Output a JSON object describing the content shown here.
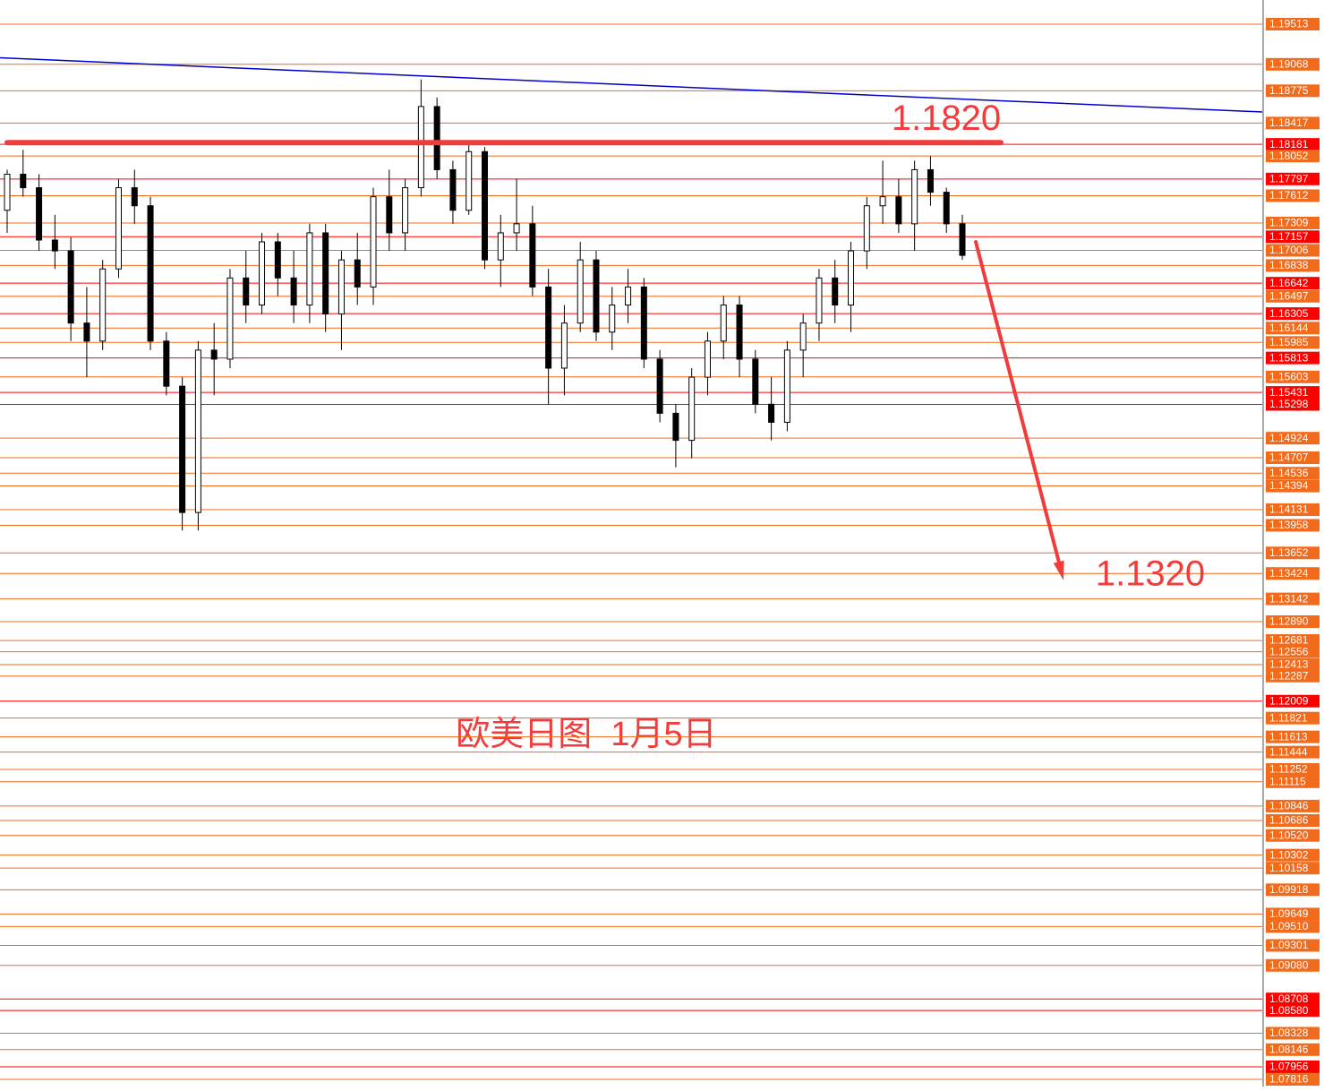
{
  "chart_data": {
    "type": "candlestick",
    "ylim": [
      1.07737,
      1.19781
    ],
    "yticks": [
      1.19513,
      1.19068,
      1.18775,
      1.18417,
      1.18181,
      1.18052,
      1.17797,
      1.17612,
      1.17309,
      1.17157,
      1.17006,
      1.16838,
      1.16642,
      1.16497,
      1.16305,
      1.16144,
      1.15985,
      1.15813,
      1.15603,
      1.15431,
      1.15298,
      1.14924,
      1.14707,
      1.14536,
      1.14394,
      1.14131,
      1.13958,
      1.13652,
      1.13424,
      1.13142,
      {
        "value": 1.1289,
        "label": "1.12890"
      },
      1.12681,
      1.12556,
      1.12413,
      1.12287,
      1.12009,
      1.11821,
      1.11613,
      1.11444,
      1.11252,
      1.11115,
      1.10846,
      1.10686,
      {
        "value": 1.1052,
        "label": "1.10520"
      },
      1.10302,
      1.10158,
      1.09918,
      1.09649,
      {
        "value": 1.0951,
        "label": "1.09510"
      },
      1.09301,
      {
        "value": 1.0908,
        "label": "1.09080"
      },
      1.08708,
      {
        "value": 1.0858,
        "label": "1.08580"
      },
      1.08328,
      1.08146,
      1.07956,
      1.07816
    ],
    "ytick_colors": [
      "#f26a1b",
      "#f26a1b",
      "#f26a1b",
      "#f26a1b",
      "#ff0000",
      "#f26a1b",
      "#ff0000",
      "#f26a1b",
      "#f26a1b",
      "#ff0000",
      "#f26a1b",
      "#f26a1b",
      "#ff0000",
      "#f26a1b",
      "#ff0000",
      "#f26a1b",
      "#f26a1b",
      "#ff0000",
      "#f26a1b",
      "#ff0000",
      "#ff0000",
      "#f26a1b",
      "#f26a1b",
      "#f26a1b",
      "#f26a1b",
      "#f26a1b",
      "#f26a1b",
      "#f26a1b",
      "#f26a1b",
      "#f26a1b",
      "#f26a1b",
      "#f26a1b",
      "#f26a1b",
      "#f26a1b",
      "#f26a1b",
      "#ff0000",
      "#f26a1b",
      "#f26a1b",
      "#f26a1b",
      "#f26a1b",
      "#f26a1b",
      "#f26a1b",
      "#f26a1b",
      "#f26a1b",
      "#f26a1b",
      "#f26a1b",
      "#f26a1b",
      "#f26a1b",
      "#f26a1b",
      "#f26a1b",
      "#f26a1b",
      "#ff0000",
      "#ff0000",
      "#f26a1b",
      "#f26a1b",
      "#ff0000",
      "#f26a1b"
    ],
    "series": {
      "open": [
        1.1745,
        1.1785,
        1.177,
        1.1712,
        1.17,
        1.162,
        1.16,
        1.168,
        1.177,
        1.175,
        1.16,
        1.155,
        1.141,
        1.159,
        1.158,
        1.167,
        1.164,
        1.171,
        1.167,
        1.164,
        1.172,
        1.163,
        1.169,
        1.166,
        1.176,
        1.172,
        1.177,
        1.186,
        1.179,
        1.1745,
        1.181,
        1.169,
        1.172,
        1.173,
        1.166,
        1.157,
        1.162,
        1.169,
        1.161,
        1.164,
        1.166,
        1.158,
        1.152,
        1.149,
        1.156,
        1.16,
        1.164,
        1.158,
        1.153,
        1.151,
        1.159,
        1.162,
        1.167,
        1.164,
        1.17,
        1.175,
        1.176,
        1.173,
        1.179,
        1.1765,
        1.173
      ],
      "high": [
        1.179,
        1.1812,
        1.1785,
        1.174,
        1.1715,
        1.166,
        1.169,
        1.178,
        1.179,
        1.176,
        1.161,
        1.156,
        1.16,
        1.162,
        1.168,
        1.17,
        1.172,
        1.172,
        1.17,
        1.173,
        1.173,
        1.17,
        1.172,
        1.177,
        1.179,
        1.178,
        1.189,
        1.187,
        1.18,
        1.182,
        1.1815,
        1.174,
        1.178,
        1.175,
        1.168,
        1.164,
        1.171,
        1.17,
        1.166,
        1.168,
        1.167,
        1.159,
        1.153,
        1.157,
        1.161,
        1.165,
        1.165,
        1.159,
        1.156,
        1.16,
        1.163,
        1.168,
        1.169,
        1.171,
        1.176,
        1.18,
        1.178,
        1.18,
        1.1805,
        1.177,
        1.174
      ],
      "low": [
        1.172,
        1.176,
        1.17,
        1.168,
        1.16,
        1.156,
        1.159,
        1.167,
        1.173,
        1.159,
        1.154,
        1.139,
        1.139,
        1.154,
        1.157,
        1.162,
        1.163,
        1.165,
        1.162,
        1.162,
        1.161,
        1.159,
        1.164,
        1.164,
        1.17,
        1.17,
        1.176,
        1.178,
        1.173,
        1.174,
        1.168,
        1.166,
        1.17,
        1.165,
        1.153,
        1.154,
        1.161,
        1.16,
        1.159,
        1.162,
        1.157,
        1.151,
        1.146,
        1.147,
        1.154,
        1.158,
        1.156,
        1.152,
        1.149,
        1.15,
        1.156,
        1.16,
        1.162,
        1.161,
        1.168,
        1.173,
        1.172,
        1.17,
        1.175,
        1.172,
        1.169
      ],
      "close": [
        1.1785,
        1.177,
        1.1712,
        1.17,
        1.162,
        1.16,
        1.168,
        1.177,
        1.175,
        1.16,
        1.155,
        1.141,
        1.159,
        1.158,
        1.167,
        1.164,
        1.171,
        1.167,
        1.164,
        1.172,
        1.163,
        1.169,
        1.166,
        1.176,
        1.172,
        1.177,
        1.186,
        1.179,
        1.1745,
        1.181,
        1.169,
        1.172,
        1.173,
        1.166,
        1.157,
        1.162,
        1.169,
        1.161,
        1.164,
        1.166,
        1.158,
        1.152,
        1.149,
        1.156,
        1.16,
        1.164,
        1.158,
        1.153,
        1.151,
        1.159,
        1.162,
        1.167,
        1.164,
        1.17,
        1.175,
        1.176,
        1.173,
        1.179,
        1.1765,
        1.173,
        1.1695
      ]
    },
    "trendline": {
      "color": "#0000cc",
      "values": [
        1.1914,
        1.1854
      ]
    },
    "resistance": {
      "label": "1.1820",
      "value": 1.182,
      "color": "#f03c3c"
    },
    "target": {
      "label": "1.1320",
      "value": 1.132,
      "color": "#f03c3c"
    },
    "arrow": {
      "values": [
        1.171,
        1.1335
      ],
      "color": "#f03c3c"
    },
    "annotation": "欧美日图  1月5日"
  }
}
